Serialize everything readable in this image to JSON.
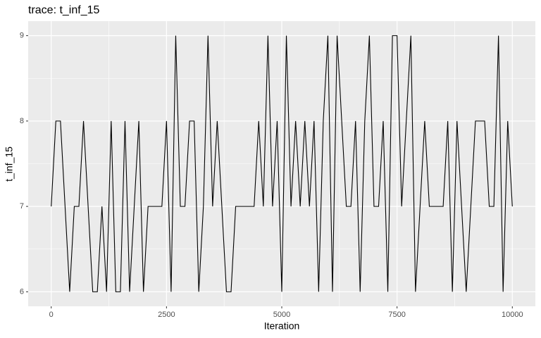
{
  "chart_data": {
    "type": "line",
    "title": "trace: t_inf_15",
    "x_label": "Iteration",
    "y_label": "t_inf_15",
    "x": [
      0,
      100,
      200,
      300,
      400,
      500,
      600,
      700,
      800,
      900,
      1000,
      1100,
      1200,
      1300,
      1400,
      1500,
      1600,
      1700,
      1800,
      1900,
      2000,
      2100,
      2200,
      2300,
      2400,
      2500,
      2600,
      2700,
      2800,
      2900,
      3000,
      3100,
      3200,
      3300,
      3400,
      3500,
      3600,
      3700,
      3800,
      3900,
      4000,
      4100,
      4200,
      4300,
      4400,
      4500,
      4600,
      4700,
      4800,
      4900,
      5000,
      5100,
      5200,
      5300,
      5400,
      5500,
      5600,
      5700,
      5800,
      5900,
      6000,
      6100,
      6200,
      6300,
      6400,
      6500,
      6600,
      6700,
      6800,
      6900,
      7000,
      7100,
      7200,
      7300,
      7400,
      7500,
      7600,
      7700,
      7800,
      7900,
      8000,
      8100,
      8200,
      8300,
      8400,
      8500,
      8600,
      8700,
      8800,
      8900,
      9000,
      9100,
      9200,
      9300,
      9400,
      9500,
      9600,
      9700,
      9800,
      9900,
      10000
    ],
    "series": [
      {
        "name": "t_inf_15",
        "color": "#000000",
        "values": [
          7,
          8,
          8,
          7,
          6,
          7,
          7,
          8,
          7,
          6,
          6,
          7,
          6,
          8,
          6,
          6,
          8,
          6,
          7,
          8,
          6,
          7,
          7,
          7,
          7,
          8,
          6,
          9,
          7,
          7,
          8,
          8,
          6,
          7,
          9,
          7,
          8,
          7,
          6,
          6,
          7,
          7,
          7,
          7,
          7,
          8,
          7,
          9,
          7,
          8,
          6,
          9,
          7,
          8,
          7,
          8,
          7,
          8,
          6,
          8,
          9,
          6,
          9,
          8,
          7,
          7,
          8,
          6,
          8,
          9,
          7,
          7,
          8,
          6,
          9,
          9,
          7,
          8,
          9,
          6,
          7,
          8,
          7,
          7,
          7,
          7,
          8,
          6,
          8,
          7,
          6,
          7,
          8,
          8,
          8,
          7,
          7,
          9,
          6,
          8,
          7
        ]
      }
    ],
    "xlim": [
      -500,
      10500
    ],
    "ylim": [
      5.83,
      9.17
    ],
    "xticks": [
      0,
      2500,
      5000,
      7500,
      10000
    ],
    "yticks": [
      6,
      7,
      8,
      9
    ],
    "grid": true
  }
}
